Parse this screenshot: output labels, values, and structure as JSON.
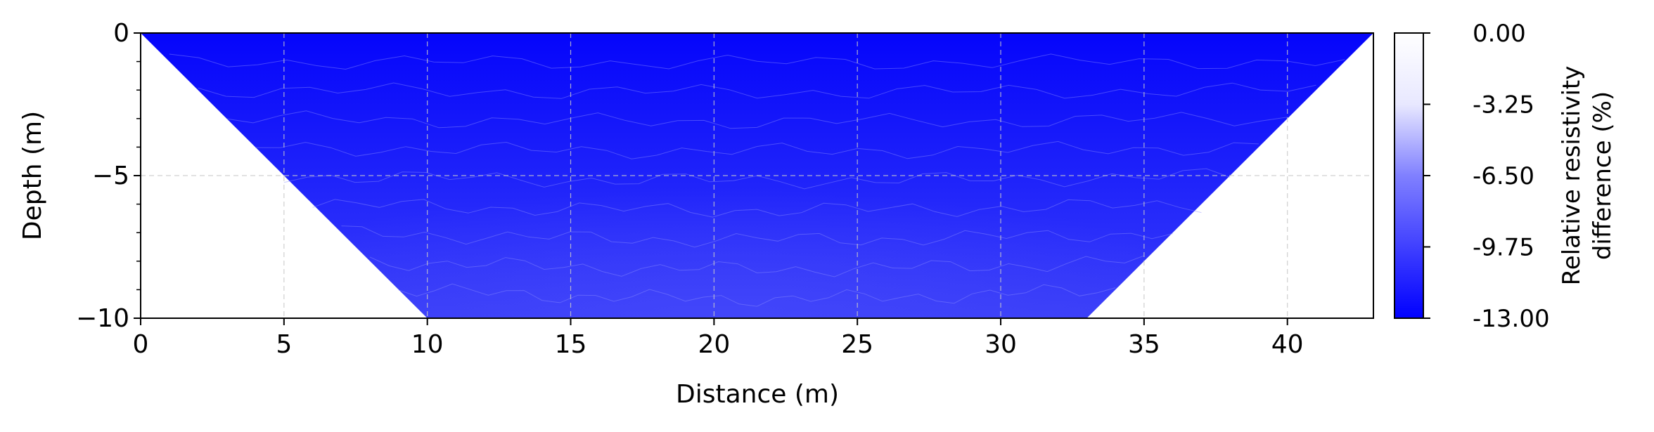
{
  "chart_data": {
    "type": "heatmap",
    "title": "",
    "xlabel": "Distance (m)",
    "ylabel": "Depth (m)",
    "xlim": [
      0,
      43
    ],
    "ylim": [
      -10,
      0
    ],
    "x_ticks": [
      0,
      5,
      10,
      15,
      20,
      25,
      30,
      35,
      40
    ],
    "x_tick_labels": [
      "0",
      "5",
      "10",
      "15",
      "20",
      "25",
      "30",
      "35",
      "40"
    ],
    "y_ticks": [
      0,
      -5,
      -10
    ],
    "y_tick_labels": [
      "0",
      "−5",
      "−10"
    ],
    "grid": true,
    "section_outline": {
      "x": [
        0,
        43,
        33,
        10
      ],
      "y": [
        0,
        0,
        -10,
        -10
      ]
    },
    "depth_profile": {
      "depth": [
        0,
        -1,
        -2,
        -3,
        -4,
        -5,
        -6,
        -7,
        -8,
        -9,
        -10
      ],
      "relative_difference": [
        -13.0,
        -12.9,
        -12.7,
        -12.5,
        -12.3,
        -12.1,
        -11.9,
        -11.7,
        -11.5,
        -11.3,
        -11.2
      ]
    },
    "colorbar": {
      "label_lines": [
        "Relative resistivity",
        "difference (%)"
      ],
      "min": -13.0,
      "max": 0.0,
      "ticks": [
        0.0,
        -3.25,
        -6.5,
        -9.75,
        -13.0
      ],
      "tick_labels": [
        "0.00",
        "-3.25",
        "-6.50",
        "-9.75",
        "-13.00"
      ],
      "color_min": "#0000ff",
      "color_max": "#ffffff"
    }
  }
}
